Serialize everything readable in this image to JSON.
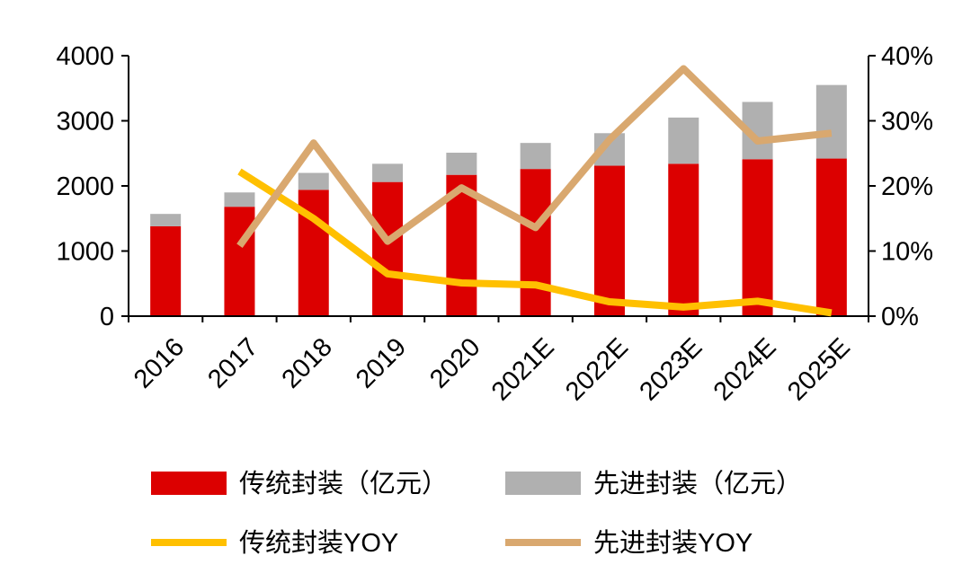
{
  "chart_data": {
    "type": "bar",
    "stacked": true,
    "categories": [
      "2016",
      "2017",
      "2018",
      "2019",
      "2020",
      "2021E",
      "2022E",
      "2023E",
      "2024E",
      "2025E"
    ],
    "series": [
      {
        "name": "传统封装（亿元）",
        "kind": "bar",
        "axis": "left",
        "color": "#dc0000",
        "values": [
          1380,
          1680,
          1940,
          2060,
          2170,
          2260,
          2310,
          2340,
          2410,
          2420
        ]
      },
      {
        "name": "先进封装（亿元）",
        "kind": "bar",
        "axis": "left",
        "color": "#b0b0b0",
        "values": [
          190,
          220,
          260,
          280,
          340,
          400,
          500,
          710,
          880,
          1130
        ]
      },
      {
        "name": "传统封装YOY",
        "kind": "line",
        "axis": "right",
        "color": "#ffc000",
        "values": [
          null,
          22.2,
          15.0,
          6.5,
          5.1,
          4.8,
          2.2,
          1.4,
          2.3,
          0.5
        ]
      },
      {
        "name": "先进封装YOY",
        "kind": "line",
        "axis": "right",
        "color": "#d9a86f",
        "values": [
          null,
          10.8,
          26.6,
          11.5,
          19.7,
          13.6,
          27.1,
          38.0,
          26.9,
          28.1
        ]
      }
    ],
    "left_axis": {
      "ylim": [
        0,
        4000
      ],
      "ticks": [
        "0",
        "1000",
        "2000",
        "3000",
        "4000"
      ]
    },
    "right_axis": {
      "ylim": [
        0,
        40
      ],
      "ticks": [
        "0%",
        "10%",
        "20%",
        "30%",
        "40%"
      ]
    },
    "grid": false,
    "legend_position": "bottom"
  }
}
